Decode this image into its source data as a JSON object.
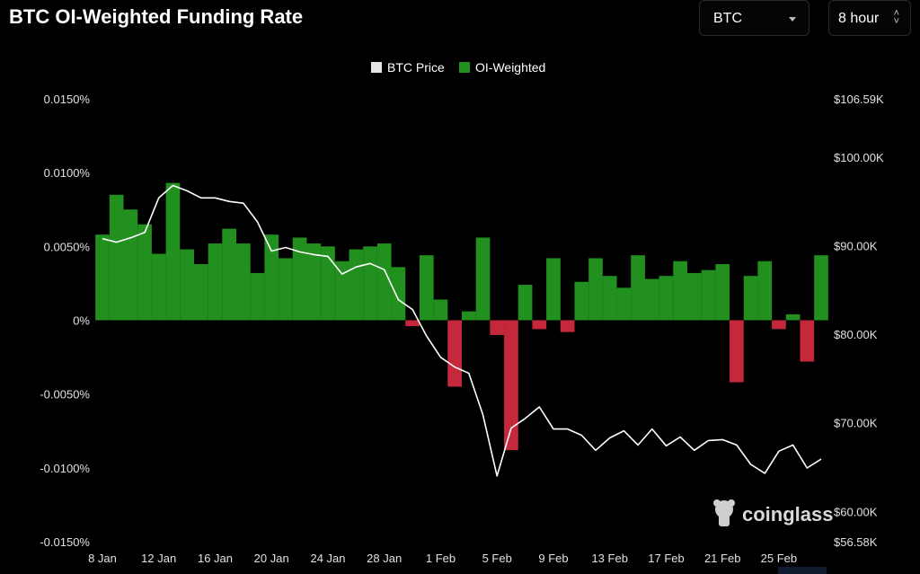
{
  "header": {
    "title": "BTC OI-Weighted Funding Rate",
    "coin_select": "BTC",
    "interval_select": "8 hour"
  },
  "watermark": "coinglass",
  "colors": {
    "background": "#000000",
    "positive": "#22901f",
    "negative": "#c5283b",
    "price_line": "#ffffff"
  },
  "chart_data": {
    "type": "area",
    "legend": [
      "BTC Price",
      "OI-Weighted"
    ],
    "legend_position": "top-center",
    "grid": false,
    "x_ticks": [
      "8 Jan",
      "12 Jan",
      "16 Jan",
      "20 Jan",
      "24 Jan",
      "28 Jan",
      "1 Feb",
      "5 Feb",
      "9 Feb",
      "13 Feb",
      "17 Feb",
      "21 Feb",
      "25 Feb"
    ],
    "y_left_ticks": [
      "0.0150%",
      "0.0100%",
      "0.0050%",
      "0%",
      "-0.0050%",
      "-0.0100%",
      "-0.0150%"
    ],
    "y_left_range": [
      -0.015,
      0.015
    ],
    "y_right_ticks": [
      "$106.59K",
      "$100.00K",
      "$90.00K",
      "$80.00K",
      "$70.00K",
      "$60.00K",
      "$56.58K"
    ],
    "y_right_range": [
      56580,
      106590
    ],
    "days": [
      "2026-01-08",
      "2026-01-09",
      "2026-01-10",
      "2026-01-11",
      "2026-01-12",
      "2026-01-13",
      "2026-01-14",
      "2026-01-15",
      "2026-01-16",
      "2026-01-17",
      "2026-01-18",
      "2026-01-19",
      "2026-01-20",
      "2026-01-21",
      "2026-01-22",
      "2026-01-23",
      "2026-01-24",
      "2026-01-25",
      "2026-01-26",
      "2026-01-27",
      "2026-01-28",
      "2026-01-29",
      "2026-01-30",
      "2026-01-31",
      "2026-02-01",
      "2026-02-02",
      "2026-02-03",
      "2026-02-04",
      "2026-02-05",
      "2026-02-06",
      "2026-02-07",
      "2026-02-08",
      "2026-02-09",
      "2026-02-10",
      "2026-02-11",
      "2026-02-12",
      "2026-02-13",
      "2026-02-14",
      "2026-02-15",
      "2026-02-16",
      "2026-02-17",
      "2026-02-18",
      "2026-02-19",
      "2026-02-20",
      "2026-02-21",
      "2026-02-22",
      "2026-02-23",
      "2026-02-24",
      "2026-02-25",
      "2026-02-26",
      "2026-02-27",
      "2026-02-28"
    ],
    "series": [
      {
        "name": "OI-Weighted",
        "values": [
          0.0058,
          0.0085,
          0.0075,
          0.0065,
          0.0045,
          0.0093,
          0.0048,
          0.0038,
          0.0052,
          0.0062,
          0.0052,
          0.0032,
          0.0058,
          0.0042,
          0.0056,
          0.0052,
          0.005,
          0.004,
          0.0048,
          0.005,
          0.0052,
          0.0036,
          -0.0004,
          0.0044,
          0.0014,
          -0.0045,
          0.0006,
          0.0056,
          -0.001,
          -0.0088,
          0.0024,
          -0.0006,
          0.0042,
          -0.0008,
          0.0026,
          0.0042,
          0.003,
          0.0022,
          0.0044,
          0.0028,
          0.003,
          0.004,
          0.0032,
          0.0034,
          0.0038,
          -0.0042,
          0.003,
          0.004,
          -0.0006,
          0.0004,
          -0.0028,
          0.0044
        ]
      },
      {
        "name": "BTC Price",
        "values": [
          90800,
          90400,
          90900,
          91500,
          95400,
          96800,
          96200,
          95400,
          95400,
          95000,
          94800,
          92700,
          89400,
          89800,
          89300,
          89000,
          88800,
          86800,
          87600,
          88000,
          87300,
          83900,
          82800,
          79800,
          77400,
          76300,
          75600,
          70900,
          64000,
          69400,
          70500,
          71800,
          69300,
          69300,
          68600,
          66900,
          68300,
          69100,
          67500,
          69300,
          67400,
          68400,
          66900,
          68000,
          68100,
          67500,
          65300,
          64300,
          66800,
          67500,
          64900,
          65900
        ]
      }
    ]
  }
}
